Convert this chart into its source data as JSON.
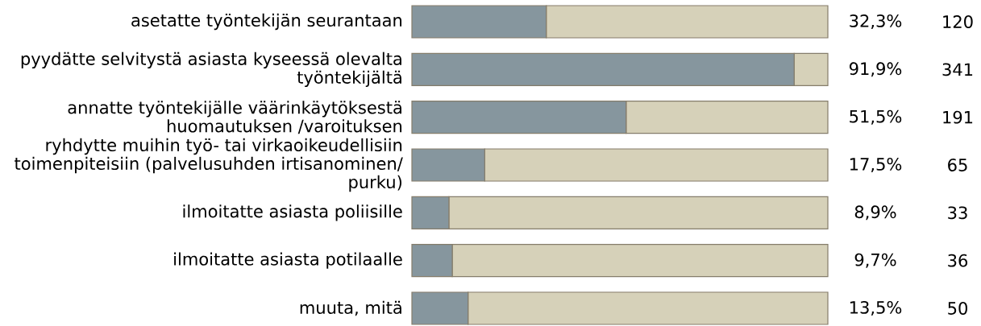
{
  "chart_data": {
    "type": "bar",
    "orientation": "horizontal",
    "stacked": true,
    "categories": [
      "asetatte työntekijän seurantaan",
      "pyydätte selvitystä asiasta kyseessä olevalta työntekijältä",
      "annatte työntekijälle väärinkäytöksestä huomautuksen /varoituksen",
      "ryhdytte muihin työ- tai virkaoikeudellisiin toimenpiteisiin (palvelusuhden irtisanominen/ purku)",
      "ilmoitatte asiasta poliisille",
      "ilmoitatte asiasta potilaalle",
      "muuta, mitä"
    ],
    "series": [
      {
        "color": "#86969e",
        "values": [
          32.3,
          91.9,
          51.5,
          17.5,
          8.9,
          9.7,
          13.5
        ],
        "value_labels": [
          "32,3%",
          "91,9%",
          "51,5%",
          "17,5%",
          "8,9%",
          "9,7%",
          "13,5%"
        ]
      },
      {
        "color": "#d6d1b9",
        "values": [
          67.7,
          8.1,
          48.5,
          82.5,
          91.1,
          90.3,
          86.5
        ]
      }
    ],
    "xlim": [
      0,
      100
    ],
    "tick_labels": "y",
    "annotations": [
      "120",
      "341",
      "191",
      "65",
      "33",
      "36",
      "50"
    ]
  }
}
